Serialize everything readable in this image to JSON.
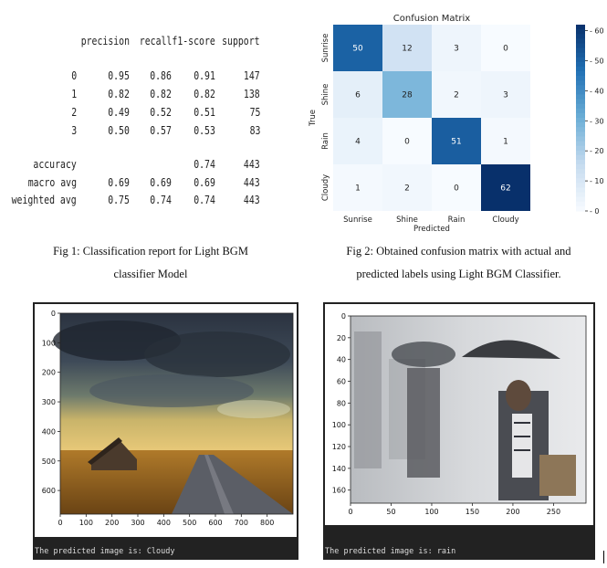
{
  "report": {
    "headers": [
      "precision",
      "recall",
      "f1-score",
      "support"
    ],
    "rows": [
      {
        "label": "0",
        "precision": "0.95",
        "recall": "0.86",
        "f1": "0.91",
        "support": "147"
      },
      {
        "label": "1",
        "precision": "0.82",
        "recall": "0.82",
        "f1": "0.82",
        "support": "138"
      },
      {
        "label": "2",
        "precision": "0.49",
        "recall": "0.52",
        "f1": "0.51",
        "support": "75"
      },
      {
        "label": "3",
        "precision": "0.50",
        "recall": "0.57",
        "f1": "0.53",
        "support": "83"
      }
    ],
    "summary": [
      {
        "label": "accuracy",
        "precision": "",
        "recall": "",
        "f1": "0.74",
        "support": "443"
      },
      {
        "label": "macro avg",
        "precision": "0.69",
        "recall": "0.69",
        "f1": "0.69",
        "support": "443"
      },
      {
        "label": "weighted avg",
        "precision": "0.75",
        "recall": "0.74",
        "f1": "0.74",
        "support": "443"
      }
    ]
  },
  "captions": {
    "fig1_line1": "Fig 1: Classification report for Light BGM",
    "fig1_line2": "classifier Model",
    "fig2_line1": "Fig 2: Obtained confusion matrix with actual and",
    "fig2_line2": "predicted labels using Light BGM Classifier."
  },
  "chart_data": [
    {
      "type": "heatmap",
      "title": "Confusion Matrix",
      "xlabel": "Predicted",
      "ylabel": "True",
      "x_categories": [
        "Sunrise",
        "Shine",
        "Rain",
        "Cloudy"
      ],
      "y_categories": [
        "Sunrise",
        "Shine",
        "Rain",
        "Cloudy"
      ],
      "values": [
        [
          50,
          12,
          3,
          0
        ],
        [
          6,
          28,
          2,
          3
        ],
        [
          4,
          0,
          51,
          1
        ],
        [
          1,
          2,
          0,
          62
        ]
      ],
      "colorbar_ticks": [
        0,
        10,
        20,
        30,
        40,
        50,
        60
      ],
      "colorbar_range": [
        0,
        62
      ],
      "colormap": "Blues"
    }
  ],
  "panels": {
    "left": {
      "prediction": "The predicted image is: Cloudy",
      "x_ticks": [
        "0",
        "100",
        "200",
        "300",
        "400",
        "500",
        "600",
        "700",
        "800"
      ],
      "y_ticks": [
        "0",
        "100",
        "200",
        "300",
        "400",
        "500",
        "600"
      ],
      "image_width": 900,
      "image_height": 680
    },
    "right": {
      "prediction": "The predicted image is: rain",
      "x_ticks": [
        "0",
        "50",
        "100",
        "150",
        "200",
        "250"
      ],
      "y_ticks": [
        "0",
        "20",
        "40",
        "60",
        "80",
        "100",
        "120",
        "140",
        "160"
      ],
      "image_width": 290,
      "image_height": 172
    }
  }
}
